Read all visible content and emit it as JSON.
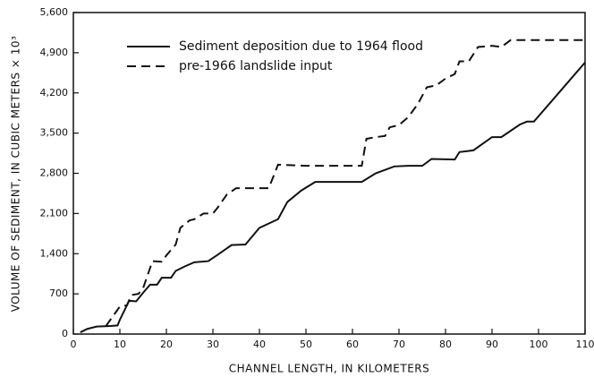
{
  "chart_data": {
    "type": "line",
    "xlabel": "CHANNEL LENGTH, IN KILOMETERS",
    "ylabel": "VOLUME OF SEDIMENT, IN CUBIC METERS × 10³",
    "xlim": [
      0,
      110
    ],
    "xticks": [
      0,
      10,
      20,
      30,
      40,
      50,
      60,
      70,
      80,
      90,
      100,
      110
    ],
    "ylim": [
      0,
      5600
    ],
    "yticks": [
      0,
      700,
      {
        "value": 1400,
        "label": "1,400"
      },
      {
        "value": 2100,
        "label": "2,100"
      },
      {
        "value": 2800,
        "label": "2,800"
      },
      {
        "value": 3500,
        "label": "3,500"
      },
      {
        "value": 4200,
        "label": "4,200"
      },
      {
        "value": 4900,
        "label": "4,900"
      },
      {
        "value": 5600,
        "label": "5,600"
      }
    ],
    "legend": "upper left",
    "series": [
      {
        "name": "Sediment deposition due to 1964 flood",
        "color": "#111111",
        "linestyle": "solid",
        "x": [
          1.5,
          3,
          5,
          8,
          9.5,
          10,
          12,
          13.5,
          15,
          16.5,
          18,
          19,
          21,
          22,
          24,
          26,
          29,
          31,
          34,
          37,
          40,
          44,
          46,
          49,
          52,
          56,
          62,
          65,
          69,
          72,
          75,
          77,
          82,
          83,
          86,
          90,
          92,
          96,
          97.5,
          99,
          110
        ],
        "values": [
          30,
          90,
          130,
          140,
          150,
          250,
          580,
          570,
          720,
          860,
          860,
          980,
          980,
          1100,
          1180,
          1250,
          1270,
          1380,
          1550,
          1560,
          1850,
          2000,
          2300,
          2500,
          2650,
          2650,
          2650,
          2800,
          2920,
          2930,
          2930,
          3050,
          3040,
          3170,
          3200,
          3430,
          3430,
          3650,
          3700,
          3700,
          4730
        ]
      },
      {
        "name": "pre-1966 landslide input",
        "color": "#111111",
        "linestyle": "dashed",
        "x": [
          7,
          10,
          11.5,
          12.5,
          14,
          15,
          17,
          19,
          20,
          22,
          23,
          25,
          26,
          28,
          30,
          31,
          33,
          35,
          40,
          42,
          44,
          50,
          62,
          63,
          65,
          67,
          68,
          70,
          72,
          74,
          76,
          78,
          80,
          82,
          83,
          85,
          87,
          90,
          92,
          94,
          110
        ],
        "values": [
          140,
          480,
          500,
          680,
          700,
          800,
          1270,
          1260,
          1370,
          1560,
          1850,
          1980,
          2000,
          2100,
          2100,
          2200,
          2430,
          2540,
          2540,
          2540,
          2950,
          2930,
          2930,
          3400,
          3430,
          3450,
          3600,
          3640,
          3780,
          4000,
          4300,
          4330,
          4450,
          4530,
          4750,
          4750,
          5000,
          5020,
          5000,
          5120,
          5120
        ]
      }
    ]
  }
}
